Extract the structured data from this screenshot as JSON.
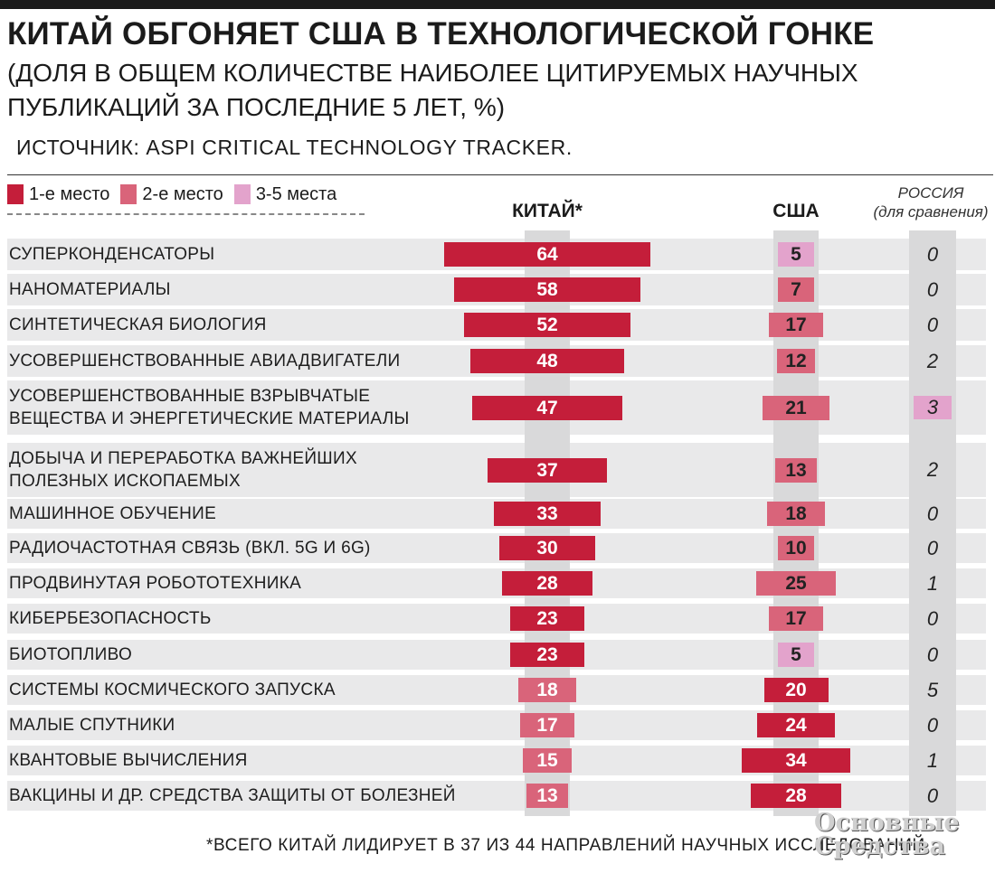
{
  "title": "КИТАЙ ОБГОНЯЕТ США В ТЕХНОЛОГИЧЕСКОЙ ГОНКЕ",
  "subtitle": "(ДОЛЯ В ОБЩЕМ КОЛИЧЕСТВЕ НАИБОЛЕЕ ЦИТИРУЕМЫХ НАУЧНЫХ ПУБЛИКАЦИЙ ЗА ПОСЛЕДНИЕ 5 ЛЕТ, %)",
  "source": "ИСТОЧНИК: ASPI CRITICAL TECHNOLOGY TRACKER.",
  "legend": [
    {
      "label": "1-е место",
      "color": "#c41e3a"
    },
    {
      "label": "2-е место",
      "color": "#d9647a"
    },
    {
      "label": "3-5 места",
      "color": "#e3a3cc"
    }
  ],
  "columns": {
    "china": "КИТАЙ*",
    "usa": "США",
    "russia_line1": "РОССИЯ",
    "russia_line2": "(для сравнения)"
  },
  "colors": {
    "first": "#c41e3a",
    "second": "#d9647a",
    "third": "#e3a3cc",
    "row_bg": "#e9e9ea",
    "center_band": "#d9d9da"
  },
  "chart_data": {
    "type": "bar",
    "categories": [
      "СУПЕРКОНДЕНСАТОРЫ",
      "НАНОМАТЕРИАЛЫ",
      "СИНТЕТИЧЕСКАЯ БИОЛОГИЯ",
      "УСОВЕРШЕНСТВОВАННЫЕ АВИАДВИГАТЕЛИ",
      "УСОВЕРШЕНСТВОВАННЫЕ ВЗРЫВЧАТЫЕ ВЕЩЕСТВА И ЭНЕРГЕТИЧЕСКИЕ МАТЕРИАЛЫ",
      "ДОБЫЧА И ПЕРЕРАБОТКА ВАЖНЕЙШИХ ПОЛЕЗНЫХ ИСКОПАЕМЫХ",
      "МАШИННОЕ ОБУЧЕНИЕ",
      "РАДИОЧАСТОТНАЯ СВЯЗЬ (ВКЛ. 5G И 6G)",
      "ПРОДВИНУТАЯ РОБОТОТЕХНИКА",
      "КИБЕРБЕЗОПАСНОСТЬ",
      "БИОТОПЛИВО",
      "СИСТЕМЫ КОСМИЧЕСКОГО ЗАПУСКА",
      "МАЛЫЕ СПУТНИКИ",
      "КВАНТОВЫЕ ВЫЧИСЛЕНИЯ",
      "ВАКЦИНЫ И ДР. СРЕДСТВА ЗАЩИТЫ ОТ БОЛЕЗНЕЙ"
    ],
    "series": [
      {
        "name": "КИТАЙ*",
        "values": [
          64,
          58,
          52,
          48,
          47,
          37,
          33,
          30,
          28,
          23,
          23,
          18,
          17,
          15,
          13
        ],
        "ranks": [
          "first",
          "first",
          "first",
          "first",
          "first",
          "first",
          "first",
          "first",
          "first",
          "first",
          "first",
          "second",
          "second",
          "second",
          "second"
        ]
      },
      {
        "name": "США",
        "values": [
          5,
          7,
          17,
          12,
          21,
          13,
          18,
          10,
          25,
          17,
          5,
          20,
          24,
          34,
          28
        ],
        "ranks": [
          "third",
          "second",
          "second",
          "second",
          "second",
          "second",
          "second",
          "second",
          "second",
          "second",
          "third",
          "first",
          "first",
          "first",
          "first"
        ]
      },
      {
        "name": "РОССИЯ",
        "values": [
          0,
          0,
          0,
          2,
          3,
          2,
          0,
          0,
          1,
          0,
          0,
          5,
          0,
          1,
          0
        ],
        "ranks": [
          "",
          "",
          "",
          "",
          "third",
          "",
          "",
          "",
          "",
          "",
          "",
          "",
          "",
          "",
          ""
        ]
      }
    ]
  },
  "footnote": "*ВСЕГО КИТАЙ ЛИДИРУЕТ В 37 ИЗ 44 НАПРАВЛЕНИЙ НАУЧНЫХ ИССЛЕДОВАНИЙ.",
  "watermark": {
    "line1": "Основные",
    "line2": "Средства"
  }
}
